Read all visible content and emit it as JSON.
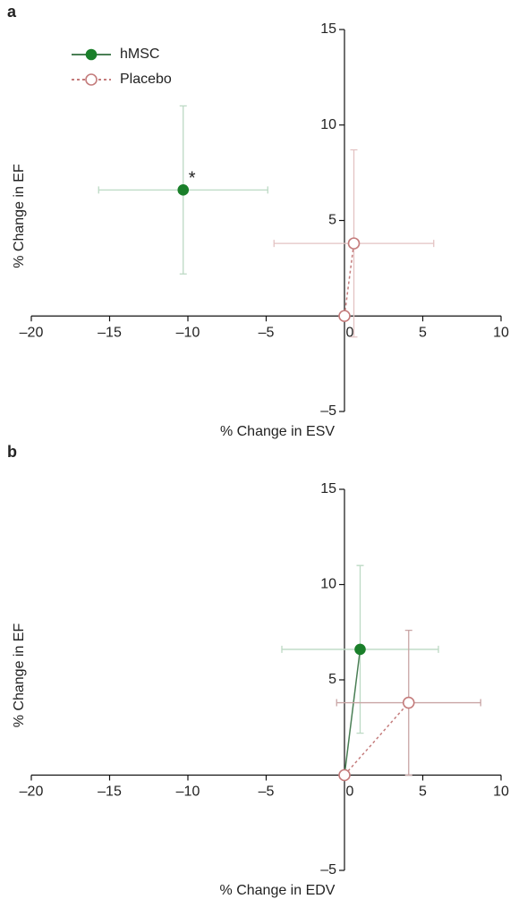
{
  "chart_data": [
    {
      "type": "scatter",
      "panel_label": "a",
      "x_label": "% Change in ESV",
      "y_label": "% Change in EF",
      "xlim": [
        -20,
        10
      ],
      "ylim": [
        -5,
        15
      ],
      "xticks": [
        {
          "value": -20,
          "label": "–20"
        },
        {
          "value": -15,
          "label": "–15"
        },
        {
          "value": -10,
          "label": "–10"
        },
        {
          "value": -5,
          "label": "–5"
        },
        0,
        5,
        10
      ],
      "yticks": [
        {
          "value": -5,
          "label": "–5"
        },
        5,
        10,
        15
      ],
      "legend": "upper left",
      "annotations": [
        "*"
      ],
      "series": [
        {
          "name": "hMSC",
          "color": "#1a7f2a",
          "line_color": "#4a7f55",
          "error_color": "#bcd9c4",
          "marker": "filled",
          "linestyle": "solid",
          "x": [
            -10.3
          ],
          "y": [
            6.6
          ],
          "x_error": [
            5.4
          ],
          "y_error": [
            4.4
          ]
        },
        {
          "name": "Placebo",
          "color": "#c47c7c",
          "line_color": "#c47c7c",
          "error_color": "#e3c3c3",
          "marker": "open",
          "linestyle": "dashed",
          "x": [
            0,
            0.6
          ],
          "y": [
            0,
            3.8
          ],
          "x_error": [
            null,
            5.1
          ],
          "y_error": [
            null,
            4.9
          ]
        }
      ]
    },
    {
      "type": "scatter",
      "panel_label": "b",
      "x_label": "% Change in EDV",
      "y_label": "% Change in EF",
      "xlim": [
        -20,
        10
      ],
      "ylim": [
        -5,
        15
      ],
      "xticks": [
        {
          "value": -20,
          "label": "–20"
        },
        {
          "value": -15,
          "label": "–15"
        },
        {
          "value": -10,
          "label": "–10"
        },
        {
          "value": -5,
          "label": "–5"
        },
        0,
        5,
        10
      ],
      "yticks": [
        {
          "value": -5,
          "label": "–5"
        },
        5,
        10,
        15
      ],
      "series": [
        {
          "name": "hMSC",
          "color": "#1a7f2a",
          "line_color": "#4a7f55",
          "error_color": "#bcd9c4",
          "marker": "filled",
          "linestyle": "solid",
          "x": [
            0,
            1.0
          ],
          "y": [
            0,
            6.6
          ],
          "x_error": [
            null,
            5.0
          ],
          "y_error": [
            null,
            4.4
          ]
        },
        {
          "name": "Placebo",
          "color": "#c47c7c",
          "line_color": "#c47c7c",
          "error_color": "#c9a5a5",
          "marker": "open",
          "linestyle": "dashed",
          "x": [
            0,
            4.1
          ],
          "y": [
            0,
            3.8
          ],
          "x_error": [
            null,
            4.6
          ],
          "y_error": [
            null,
            3.8
          ]
        }
      ]
    }
  ]
}
